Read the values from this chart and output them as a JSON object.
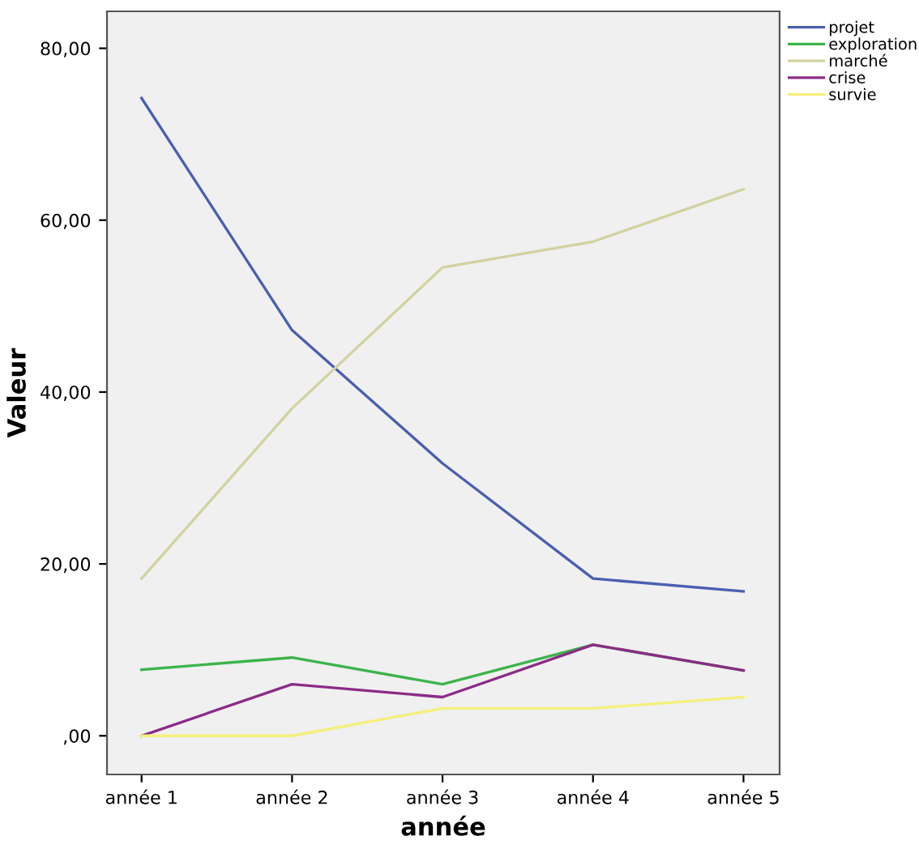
{
  "chart_data": {
    "type": "line",
    "xlabel": "année",
    "ylabel": "Valeur",
    "categories": [
      "année 1",
      "année 2",
      "année 3",
      "année 4",
      "année 5"
    ],
    "series": [
      {
        "name": "projet",
        "color": "#4a5fb0",
        "values": [
          74.2,
          47.2,
          31.7,
          18.3,
          16.8
        ]
      },
      {
        "name": "exploration",
        "color": "#3cb44b",
        "values": [
          7.7,
          9.1,
          6.0,
          10.6,
          7.6
        ]
      },
      {
        "name": "marché",
        "color": "#d2d2a0",
        "values": [
          18.3,
          38.1,
          54.5,
          57.5,
          63.6
        ]
      },
      {
        "name": "crise",
        "color": "#8b2c86",
        "values": [
          0,
          6.0,
          4.5,
          10.6,
          7.6
        ]
      },
      {
        "name": "survie",
        "color": "#f5f07a",
        "values": [
          0,
          0,
          3.2,
          3.2,
          4.5
        ]
      }
    ],
    "ylim": [
      -4.5,
      84.3
    ],
    "yticks": [
      {
        "value": 0,
        "label": ",00"
      },
      {
        "value": 20,
        "label": "20,00"
      },
      {
        "value": 40,
        "label": "40,00"
      },
      {
        "value": 60,
        "label": "60,00"
      },
      {
        "value": 80,
        "label": "80,00"
      }
    ],
    "grid": false,
    "legend": "top right",
    "marker": "none",
    "line_style": "solid"
  }
}
